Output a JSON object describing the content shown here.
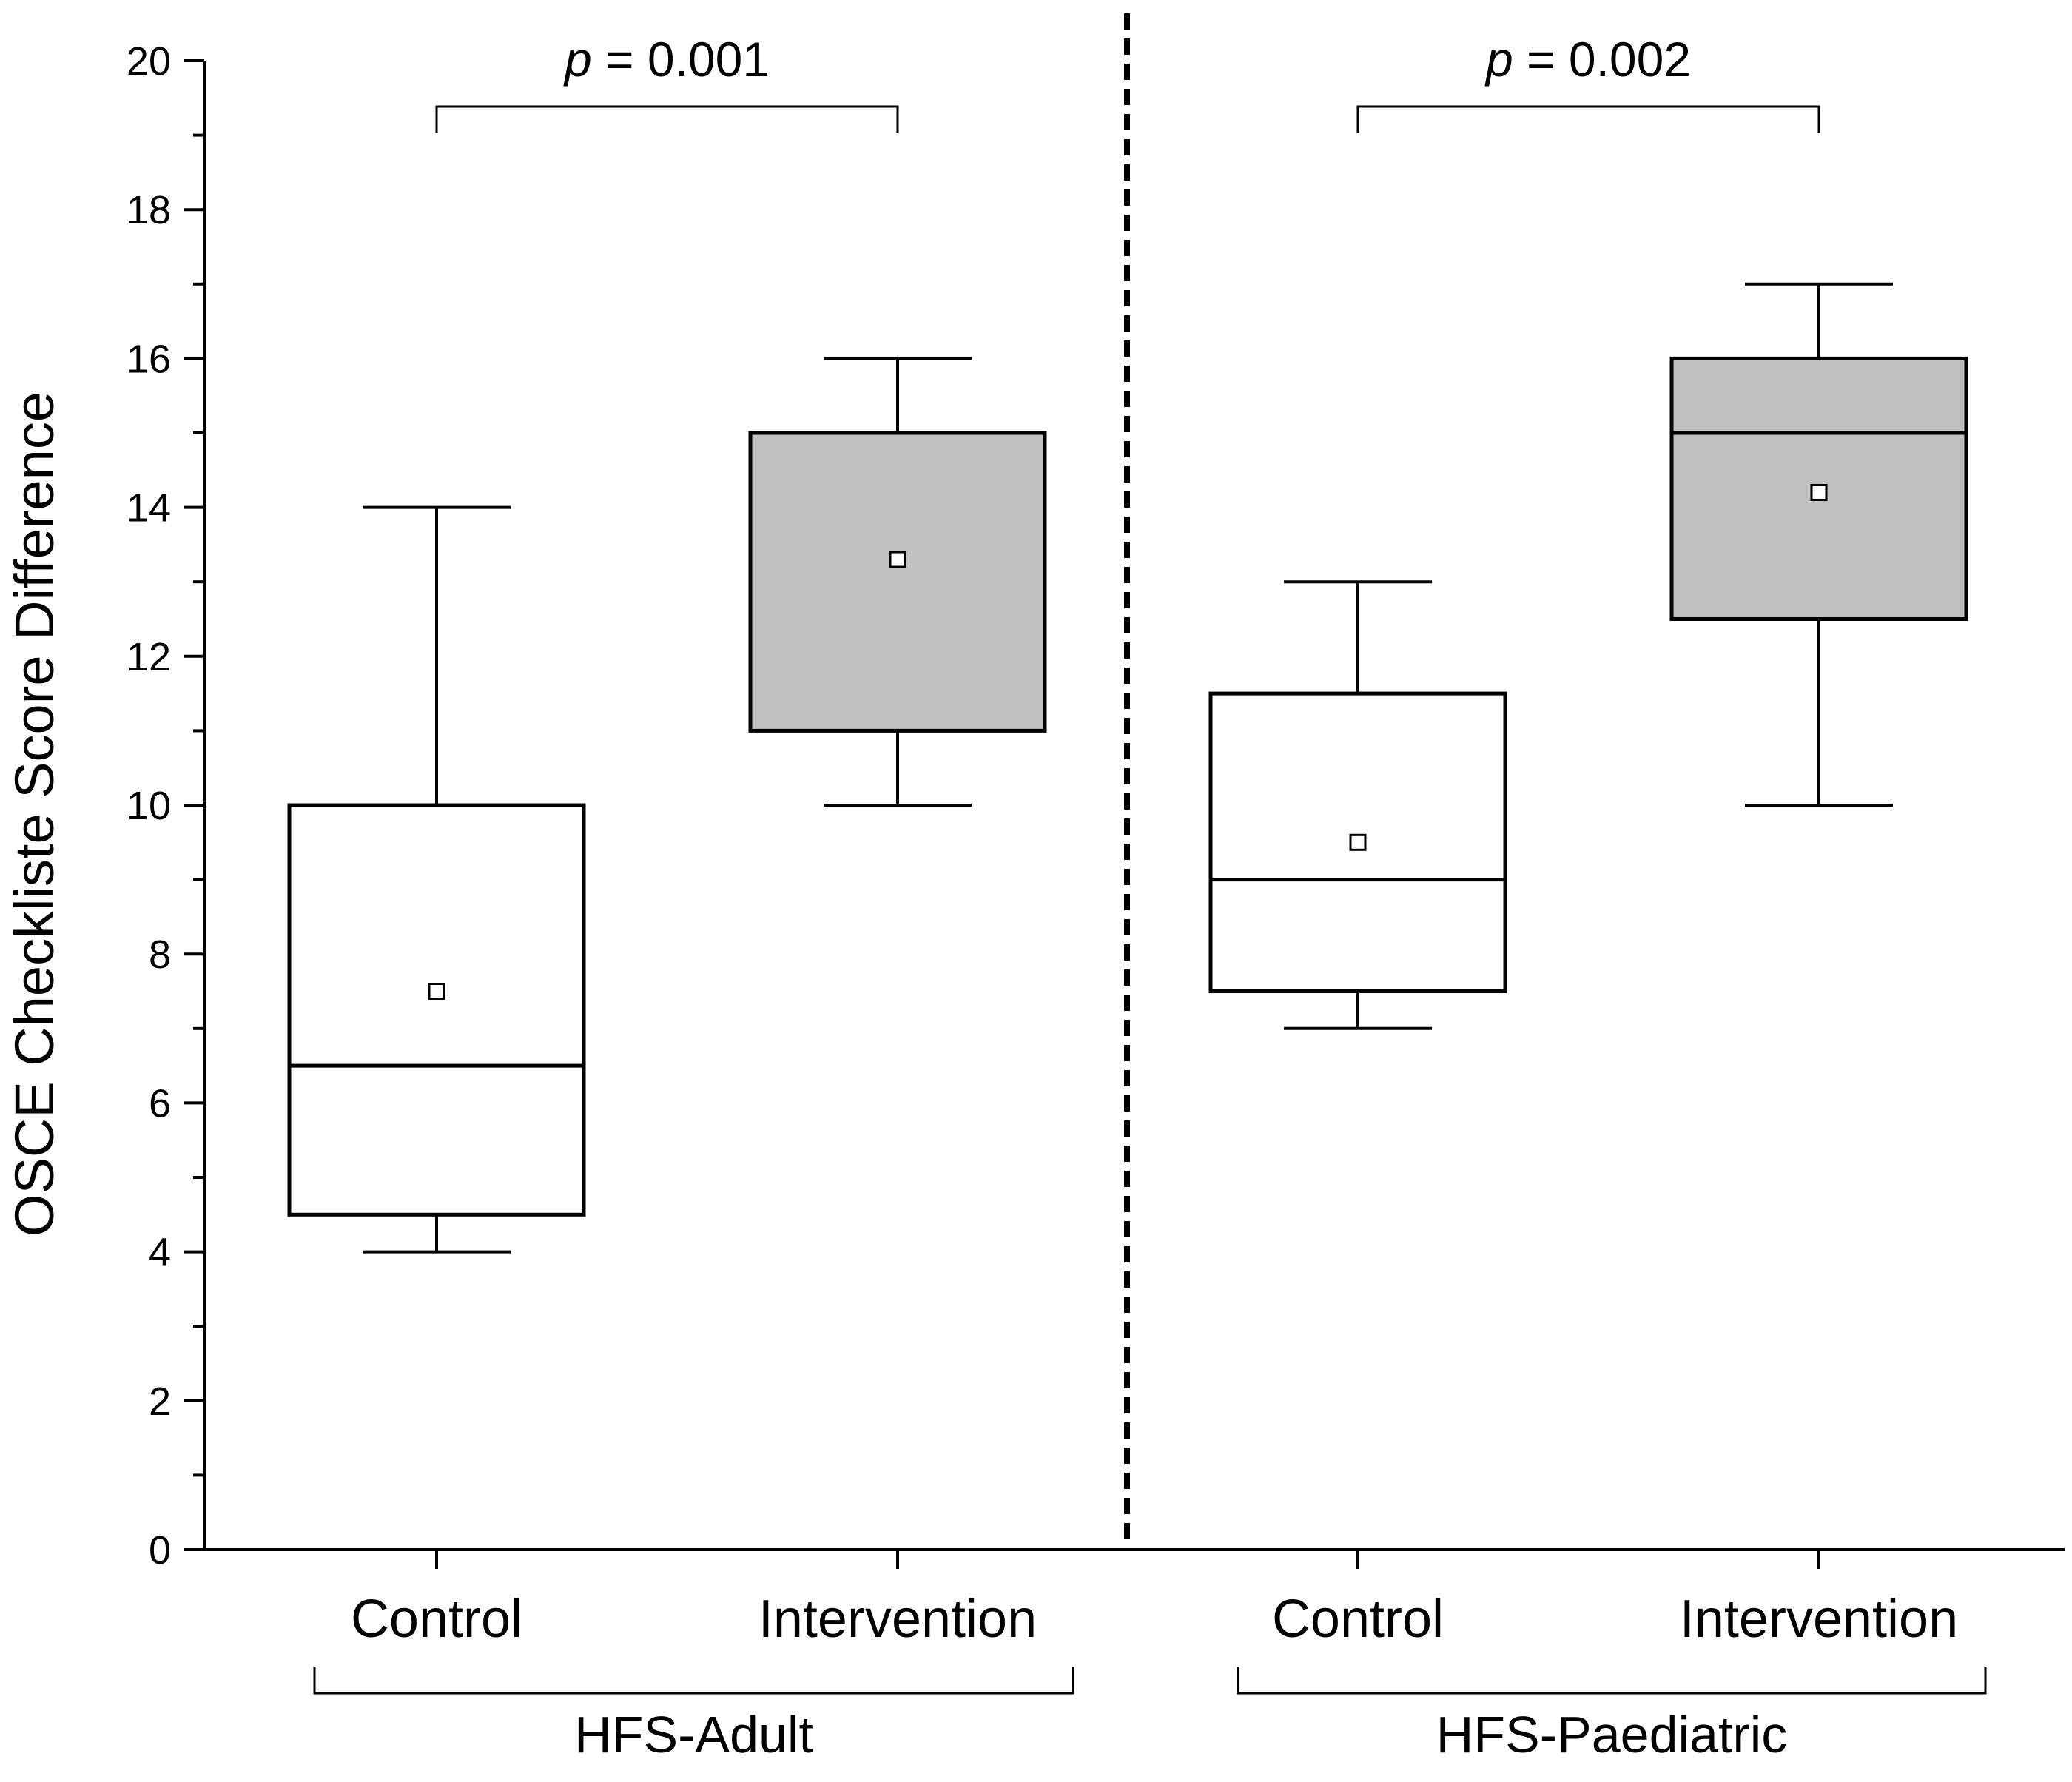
{
  "chart_data": {
    "type": "box",
    "title": "",
    "xlabel": "",
    "ylabel": "OSCE Checkliste Score Difference",
    "ylim": [
      0,
      20
    ],
    "yticks": [
      0,
      2,
      4,
      6,
      8,
      10,
      12,
      14,
      16,
      18,
      20
    ],
    "yticks_minor": [
      1,
      3,
      5,
      7,
      9,
      11,
      13,
      15,
      17,
      19
    ],
    "groups": [
      {
        "name": "HFS-Adult",
        "comparison": {
          "p_symbol": "p",
          "p_text": " = 0.001"
        },
        "boxes": [
          {
            "category": "Control",
            "whisker_low": 4,
            "q1": 4.5,
            "median": 6.5,
            "q3": 10,
            "whisker_high": 14,
            "mean": 7.5,
            "fill": "#ffffff"
          },
          {
            "category": "Intervention",
            "whisker_low": 10,
            "q1": 11,
            "median": 15,
            "q3": 15,
            "whisker_high": 16,
            "mean": 13.3,
            "fill": "#c0c0c0"
          }
        ]
      },
      {
        "name": "HFS-Paediatric",
        "comparison": {
          "p_symbol": "p",
          "p_text": " = 0.002"
        },
        "boxes": [
          {
            "category": "Control",
            "whisker_low": 7,
            "q1": 7.5,
            "median": 9,
            "q3": 11.5,
            "whisker_high": 13,
            "mean": 9.5,
            "fill": "#ffffff"
          },
          {
            "category": "Intervention",
            "whisker_low": 10,
            "q1": 12.5,
            "median": 15,
            "q3": 16,
            "whisker_high": 17,
            "mean": 14.2,
            "fill": "#c0c0c0"
          }
        ]
      }
    ],
    "separator": "dashed vertical line between groups"
  }
}
